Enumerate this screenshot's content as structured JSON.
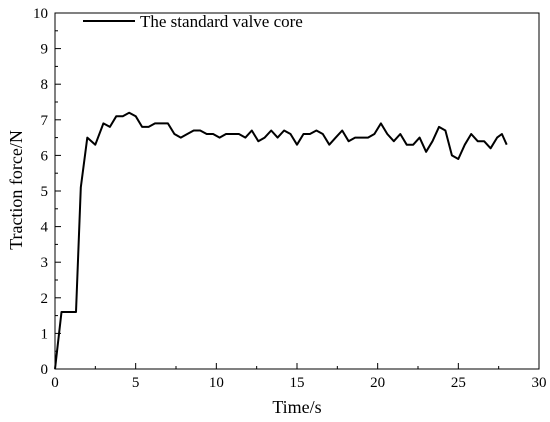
{
  "chart_data": {
    "type": "line",
    "title": "",
    "xlabel": "Time/s",
    "ylabel": "Traction force/N",
    "xlim": [
      0,
      30
    ],
    "ylim": [
      0,
      10
    ],
    "xticks": [
      0,
      5,
      10,
      15,
      20,
      25,
      30
    ],
    "yticks": [
      0,
      1,
      2,
      3,
      4,
      5,
      6,
      7,
      8,
      9,
      10
    ],
    "grid": false,
    "legend_position": "top-left",
    "series": [
      {
        "name": "The standard valve core",
        "color": "#000000",
        "x": [
          0,
          0.4,
          0.7,
          1.0,
          1.3,
          1.6,
          2.0,
          2.5,
          3.0,
          3.4,
          3.8,
          4.2,
          4.6,
          5.0,
          5.4,
          5.8,
          6.2,
          6.6,
          7.0,
          7.4,
          7.8,
          8.2,
          8.6,
          9.0,
          9.4,
          9.8,
          10.2,
          10.6,
          11.0,
          11.4,
          11.8,
          12.2,
          12.6,
          13.0,
          13.4,
          13.8,
          14.2,
          14.6,
          15.0,
          15.4,
          15.8,
          16.2,
          16.6,
          17.0,
          17.4,
          17.8,
          18.2,
          18.6,
          19.0,
          19.4,
          19.8,
          20.2,
          20.6,
          21.0,
          21.4,
          21.8,
          22.2,
          22.6,
          23.0,
          23.4,
          23.8,
          24.2,
          24.6,
          25.0,
          25.4,
          25.8,
          26.2,
          26.6,
          27.0,
          27.4,
          27.7,
          28.0
        ],
        "values": [
          0,
          1.6,
          1.6,
          1.6,
          1.6,
          5.1,
          6.5,
          6.3,
          6.9,
          6.8,
          7.1,
          7.1,
          7.2,
          7.1,
          6.8,
          6.8,
          6.9,
          6.9,
          6.9,
          6.6,
          6.5,
          6.6,
          6.7,
          6.7,
          6.6,
          6.6,
          6.5,
          6.6,
          6.6,
          6.6,
          6.5,
          6.7,
          6.4,
          6.5,
          6.7,
          6.5,
          6.7,
          6.6,
          6.3,
          6.6,
          6.6,
          6.7,
          6.6,
          6.3,
          6.5,
          6.7,
          6.4,
          6.5,
          6.5,
          6.5,
          6.6,
          6.9,
          6.6,
          6.4,
          6.6,
          6.3,
          6.3,
          6.5,
          6.1,
          6.4,
          6.8,
          6.7,
          6.0,
          5.9,
          6.3,
          6.6,
          6.4,
          6.4,
          6.2,
          6.5,
          6.6,
          6.3
        ]
      }
    ]
  }
}
